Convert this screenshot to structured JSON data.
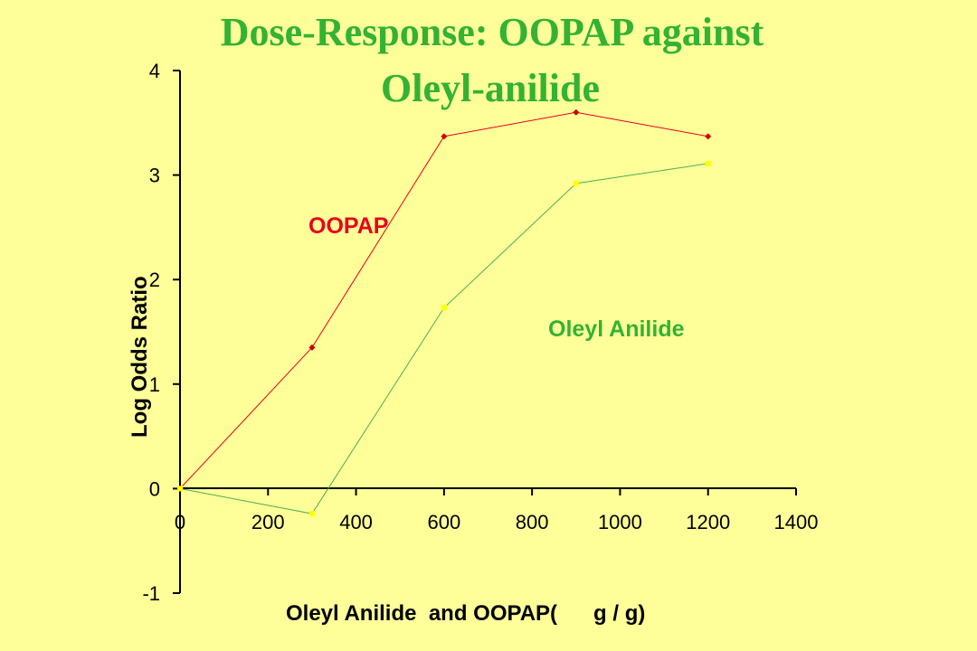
{
  "chart_data": {
    "type": "line",
    "title": [
      "Dose-Response: OOPAP against",
      "Oleyl-anilide"
    ],
    "xlabel": "Oleyl Anilide  and OOPAP(      g / g)",
    "ylabel": "Log Odds Ratio",
    "xlim": [
      0,
      1400
    ],
    "ylim": [
      -1,
      4
    ],
    "x_ticks": [
      0,
      200,
      400,
      600,
      800,
      1000,
      1200,
      1400
    ],
    "y_ticks": [
      -1,
      0,
      1,
      2,
      3,
      4
    ],
    "grid": false,
    "series": [
      {
        "name": "OOPAP",
        "color": "#e8001c",
        "marker_color": "#cc0000",
        "x": [
          0,
          300,
          600,
          900,
          1200
        ],
        "y": [
          0,
          1.35,
          3.37,
          3.6,
          3.37
        ]
      },
      {
        "name": "Oleyl Anilide",
        "color": "#4caf50",
        "marker_color": "#ffff00",
        "x": [
          0,
          300,
          600,
          900,
          1200
        ],
        "y": [
          0,
          -0.24,
          1.73,
          2.92,
          3.11
        ]
      }
    ]
  }
}
